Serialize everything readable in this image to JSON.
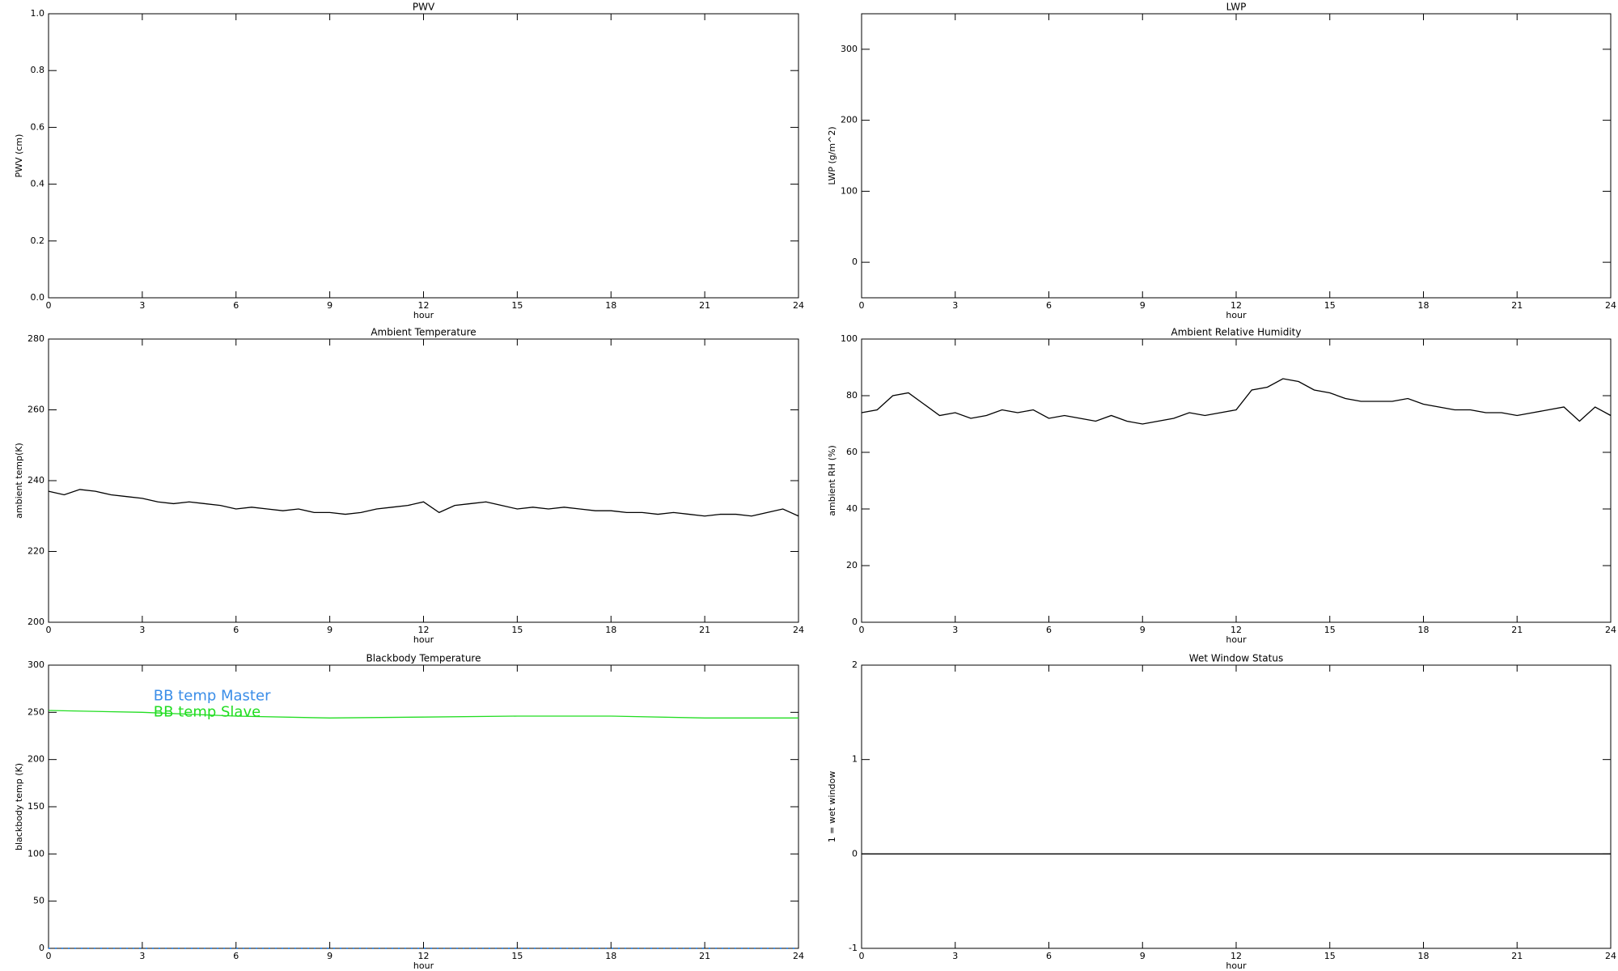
{
  "chart_data": [
    {
      "type": "line",
      "title": "PWV",
      "xlabel": "hour",
      "ylabel": "PWV (cm)",
      "xlim": [
        0,
        24
      ],
      "xticks": [
        0,
        3,
        6,
        9,
        12,
        15,
        18,
        21,
        24
      ],
      "ylim": [
        0,
        1
      ],
      "yticks": [
        {
          "value": 0,
          "label": "0.0"
        },
        0.2,
        0.4,
        0.6,
        0.8,
        {
          "value": 1,
          "label": "1.0"
        }
      ]
    },
    {
      "type": "line",
      "title": "LWP",
      "xlabel": "hour",
      "ylabel": "LWP (g/m^2)",
      "xlim": [
        0,
        24
      ],
      "xticks": [
        0,
        3,
        6,
        9,
        12,
        15,
        18,
        21,
        24
      ],
      "ylim": [
        -50,
        350
      ],
      "yticks": [
        0,
        100,
        200,
        300
      ]
    },
    {
      "type": "line",
      "title": "Ambient Temperature",
      "xlabel": "hour",
      "ylabel": "ambient temp(K)",
      "xlim": [
        0,
        24
      ],
      "xticks": [
        0,
        3,
        6,
        9,
        12,
        15,
        18,
        21,
        24
      ],
      "ylim": [
        200,
        280
      ],
      "yticks": [
        200,
        220,
        240,
        260,
        280
      ],
      "x": [
        0,
        0.5,
        1,
        1.5,
        2,
        2.5,
        3,
        3.5,
        4,
        4.5,
        5,
        5.5,
        6,
        6.5,
        7,
        7.5,
        8,
        8.5,
        9,
        9.5,
        10,
        10.5,
        11,
        11.5,
        12,
        12.5,
        13,
        13.5,
        14,
        14.5,
        15,
        15.5,
        16,
        16.5,
        17,
        17.5,
        18,
        18.5,
        19,
        19.5,
        20,
        20.5,
        21,
        21.5,
        22,
        22.5,
        23,
        23.5,
        24
      ],
      "series": [
        {
          "color": "#000000",
          "values": [
            237,
            236,
            237.5,
            237,
            236,
            235.5,
            235,
            234,
            233.5,
            234,
            233.5,
            233,
            232,
            232.5,
            232,
            231.5,
            232,
            231,
            231,
            230.5,
            231,
            232,
            232.5,
            233,
            234,
            231,
            233,
            233.5,
            234,
            233,
            232,
            232.5,
            232,
            232.5,
            232,
            231.5,
            231.5,
            231,
            231,
            230.5,
            231,
            230.5,
            230,
            230.5,
            230.5,
            230,
            231,
            232,
            230
          ]
        }
      ]
    },
    {
      "type": "line",
      "title": "Ambient Relative Humidity",
      "xlabel": "hour",
      "ylabel": "ambient RH (%)",
      "xlim": [
        0,
        24
      ],
      "xticks": [
        0,
        3,
        6,
        9,
        12,
        15,
        18,
        21,
        24
      ],
      "ylim": [
        0,
        100
      ],
      "yticks": [
        0,
        20,
        40,
        60,
        80,
        100
      ],
      "x": [
        0,
        0.5,
        1,
        1.5,
        2,
        2.5,
        3,
        3.5,
        4,
        4.5,
        5,
        5.5,
        6,
        6.5,
        7,
        7.5,
        8,
        8.5,
        9,
        9.5,
        10,
        10.5,
        11,
        11.5,
        12,
        12.5,
        13,
        13.5,
        14,
        14.5,
        15,
        15.5,
        16,
        16.5,
        17,
        17.5,
        18,
        18.5,
        19,
        19.5,
        20,
        20.5,
        21,
        21.5,
        22,
        22.5,
        23,
        23.5,
        24
      ],
      "series": [
        {
          "color": "#000000",
          "values": [
            74,
            75,
            80,
            81,
            77,
            73,
            74,
            72,
            73,
            75,
            74,
            75,
            72,
            73,
            72,
            71,
            73,
            71,
            70,
            71,
            72,
            74,
            73,
            74,
            75,
            82,
            83,
            86,
            85,
            82,
            81,
            79,
            78,
            78,
            78,
            79,
            77,
            76,
            75,
            75,
            74,
            74,
            73,
            74,
            75,
            76,
            71,
            76,
            73
          ]
        }
      ]
    },
    {
      "type": "line",
      "title": "Blackbody Temperature",
      "xlabel": "hour",
      "ylabel": "blackbody temp (K)",
      "xlim": [
        0,
        24
      ],
      "xticks": [
        0,
        3,
        6,
        9,
        12,
        15,
        18,
        21,
        24
      ],
      "ylim": [
        0,
        300
      ],
      "yticks": [
        0,
        50,
        100,
        150,
        200,
        250,
        300
      ],
      "legend": "upper left",
      "x": [
        0,
        3,
        6,
        9,
        12,
        15,
        18,
        21,
        24
      ],
      "series": [
        {
          "name": "BB temp Master",
          "color": "#3b8ee8",
          "dashed": true,
          "values": [
            0,
            0,
            0,
            0,
            0,
            0,
            0,
            0,
            0
          ]
        },
        {
          "name": "BB temp Slave",
          "color": "#22dd22",
          "values": [
            252,
            250,
            246,
            244,
            245,
            246,
            246,
            244,
            244
          ]
        }
      ]
    },
    {
      "type": "line",
      "title": "Wet Window Status",
      "xlabel": "hour",
      "ylabel": "1 = wet window",
      "xlim": [
        0,
        24
      ],
      "xticks": [
        0,
        3,
        6,
        9,
        12,
        15,
        18,
        21,
        24
      ],
      "ylim": [
        -1,
        2
      ],
      "yticks": [
        -1,
        0,
        1,
        2
      ],
      "x": [
        0,
        24
      ],
      "series": [
        {
          "color": "#000000",
          "values": [
            0,
            0
          ]
        }
      ]
    }
  ]
}
